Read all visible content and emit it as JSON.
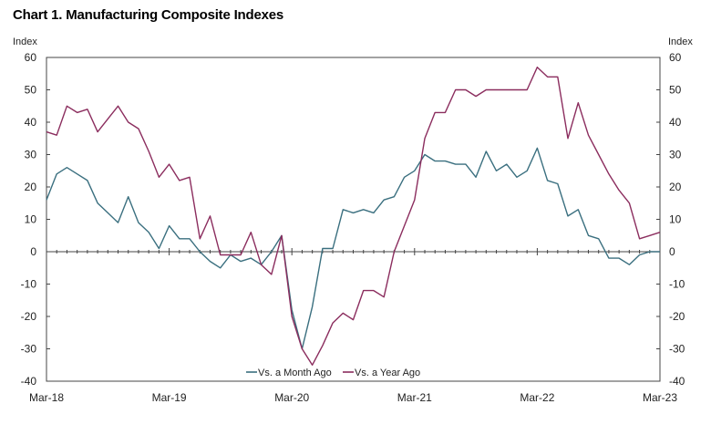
{
  "chart_data": {
    "type": "line",
    "title": "Chart 1. Manufacturing Composite Indexes",
    "ylabel_left": "Index",
    "ylabel_right": "Index",
    "ylim": [
      -40,
      60
    ],
    "yticks": [
      60,
      50,
      40,
      30,
      20,
      10,
      0,
      -10,
      -20,
      -30,
      -40
    ],
    "xlim": [
      0,
      60
    ],
    "xticks": [
      {
        "pos": 0,
        "label": "Mar-18"
      },
      {
        "pos": 12,
        "label": "Mar-19"
      },
      {
        "pos": 24,
        "label": "Mar-20"
      },
      {
        "pos": 36,
        "label": "Mar-21"
      },
      {
        "pos": 48,
        "label": "Mar-22"
      },
      {
        "pos": 60,
        "label": "Mar-23"
      }
    ],
    "grid": false,
    "legend_position": "bottom-center",
    "series": [
      {
        "name": "Vs. a Month Ago",
        "color": "#3a6f7f",
        "values": [
          16,
          24,
          26,
          24,
          22,
          15,
          12,
          9,
          17,
          9,
          6,
          1,
          8,
          4,
          4,
          0,
          -3,
          -5,
          -1,
          -3,
          -2,
          -4,
          0,
          5,
          -18,
          -30,
          -17,
          1,
          1,
          13,
          12,
          13,
          12,
          16,
          17,
          23,
          25,
          30,
          28,
          28,
          27,
          27,
          23,
          31,
          25,
          27,
          23,
          25,
          32,
          22,
          21,
          11,
          13,
          5,
          4,
          -2,
          -2,
          -4,
          -1,
          0,
          0
        ]
      },
      {
        "name": "Vs. a Year Ago",
        "color": "#8b2d5e",
        "values": [
          37,
          36,
          45,
          43,
          44,
          37,
          41,
          45,
          40,
          38,
          31,
          23,
          27,
          22,
          23,
          4,
          11,
          -1,
          -1,
          -1,
          6,
          -4,
          -7,
          5,
          -20,
          -30,
          -35,
          -29,
          -22,
          -19,
          -21,
          -12,
          -12,
          -14,
          0,
          8,
          16,
          35,
          43,
          43,
          50,
          50,
          48,
          50,
          50,
          50,
          50,
          50,
          57,
          54,
          54,
          35,
          46,
          36,
          30,
          24,
          19,
          15,
          4,
          5,
          6
        ]
      }
    ]
  }
}
